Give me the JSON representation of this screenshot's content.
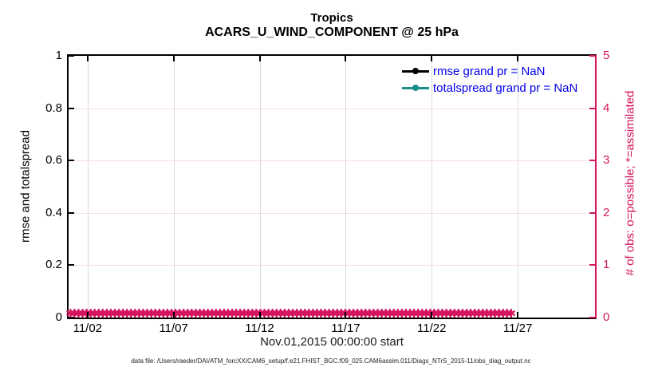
{
  "title": {
    "line1": "Tropics",
    "line2": "ACARS_U_WIND_COMPONENT @ 25 hPa"
  },
  "axes": {
    "left": {
      "label": "rmse and totalspread",
      "ticks": [
        "0",
        "0.2",
        "0.4",
        "0.6",
        "0.8",
        "1"
      ]
    },
    "right": {
      "label": "# of obs: o=possible; *=assimilated",
      "ticks": [
        "0",
        "1",
        "2",
        "3",
        "4",
        "5"
      ]
    },
    "x": {
      "label": "Nov.01,2015 00:00:00 start",
      "ticks": [
        "11/02",
        "11/07",
        "11/12",
        "11/17",
        "11/22",
        "11/27"
      ]
    }
  },
  "legend": {
    "items": [
      {
        "label": "rmse grand pr = NaN",
        "color": "#000000"
      },
      {
        "label": "totalspread grand pr = NaN",
        "color": "#178f8b"
      }
    ]
  },
  "obs_markers": {
    "glyph": "✱",
    "count": 110,
    "value_plotted": 0
  },
  "footer": "data file: /Users/raeder/DAI/ATM_forcXX/CAM6_setup/f.e21.FHIST_BGC.f09_025.CAM6assim.011/Diags_NTrS_2015-11/obs_diag_output.nc",
  "colors": {
    "crimson": "#d4155e",
    "teal": "#178f8b",
    "legend_text": "#0000ee",
    "grid_vertical": "#d9d9dc",
    "grid_horizontal": "#f6dde6"
  },
  "chart_data": {
    "type": "line",
    "title": "Tropics",
    "subtitle": "ACARS_U_WIND_COMPONENT @ 25 hPa",
    "xlabel": "Nov.01,2015 00:00:00 start",
    "ylabel_left": "rmse and totalspread",
    "ylabel_right": "# of obs: o=possible; *=assimilated",
    "x_range": [
      "2015-11-01",
      "2015-12-01"
    ],
    "x_tick_labels": [
      "11/02",
      "11/07",
      "11/12",
      "11/17",
      "11/22",
      "11/27"
    ],
    "ylim_left": [
      0,
      1
    ],
    "ylim_right": [
      0,
      5
    ],
    "grid": true,
    "legend_position": "upper right",
    "series": [
      {
        "name": "rmse grand pr = NaN",
        "color": "#000000",
        "marker": "circle",
        "values": "NaN — no curve plotted"
      },
      {
        "name": "totalspread grand pr = NaN",
        "color": "#178f8b",
        "marker": "circle",
        "values": "NaN — no curve plotted"
      }
    ],
    "obs_count_series": {
      "description": "crimson * markers (right axis) at 0 for every time step from 11/01 through end of range",
      "possible": 0,
      "assimilated": 0
    }
  }
}
